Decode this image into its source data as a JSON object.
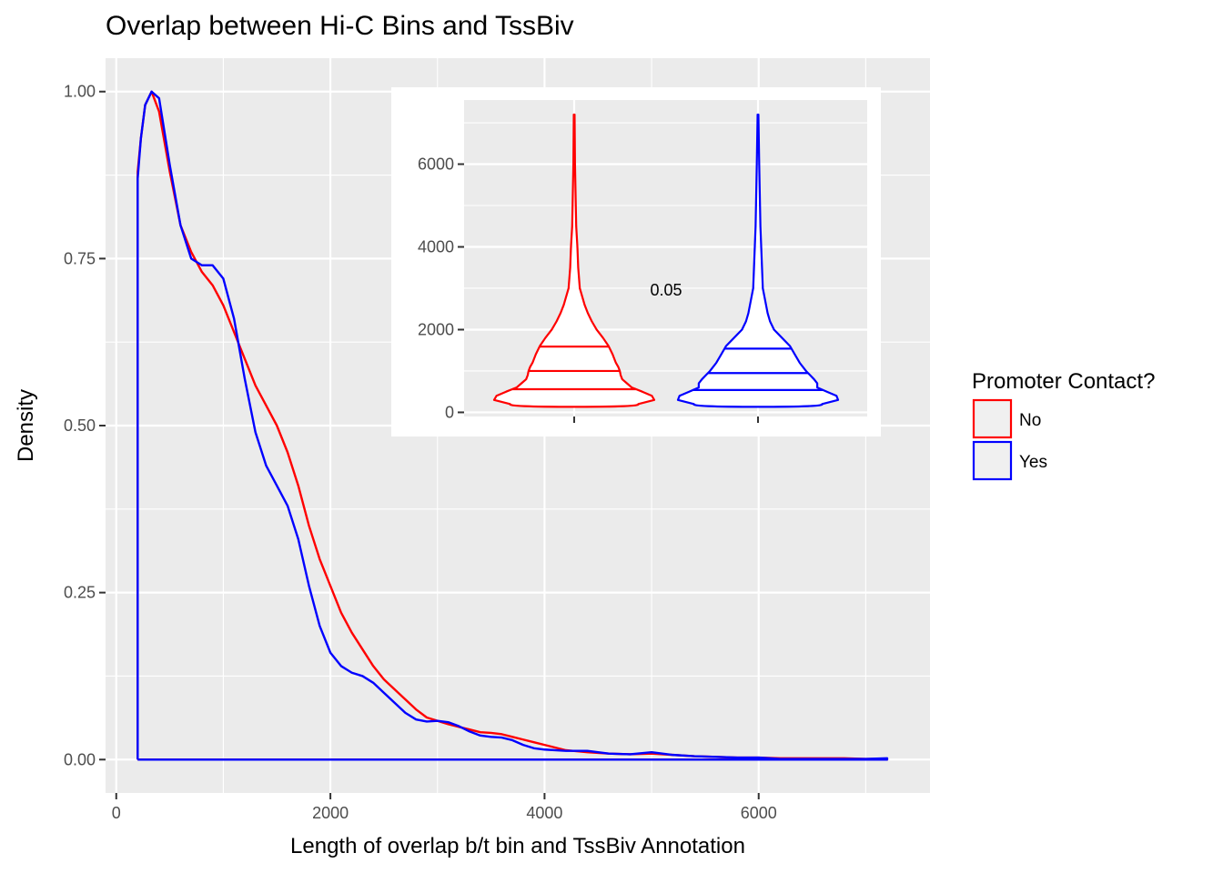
{
  "chart_data": {
    "type": "line",
    "title": "Overlap between Hi-C Bins and TssBiv",
    "xlabel": "Length of overlap b/t bin and TssBiv Annotation",
    "ylabel": "Density",
    "xlim": [
      -100,
      7600
    ],
    "ylim": [
      -0.05,
      1.05
    ],
    "x_ticks": [
      0,
      2000,
      4000,
      6000
    ],
    "x_tick_labels": [
      "0",
      "2000",
      "4000",
      "6000"
    ],
    "y_ticks": [
      0,
      0.25,
      0.5,
      0.75,
      1.0
    ],
    "y_tick_labels": [
      "0.00",
      "0.25",
      "0.50",
      "0.75",
      "1.00"
    ],
    "grid": true,
    "legend": {
      "title": "Promoter Contact?",
      "position": "right",
      "entries": [
        {
          "label": "No",
          "color": "#ff0000"
        },
        {
          "label": "Yes",
          "color": "#0000ff"
        }
      ]
    },
    "series": [
      {
        "name": "No",
        "color": "#ff0000",
        "x": [
          200,
          230,
          270,
          330,
          400,
          500,
          600,
          700,
          800,
          900,
          1000,
          1100,
          1200,
          1300,
          1400,
          1500,
          1600,
          1700,
          1800,
          1900,
          2000,
          2100,
          2200,
          2300,
          2400,
          2500,
          2600,
          2700,
          2800,
          2900,
          3000,
          3100,
          3200,
          3300,
          3400,
          3500,
          3600,
          3700,
          3800,
          3900,
          4000,
          4200,
          4400,
          4600,
          4800,
          5000,
          5200,
          5400,
          5600,
          5800,
          6000,
          6200,
          6400,
          6600,
          6800,
          7000,
          7200
        ],
        "y": [
          0.88,
          0.93,
          0.98,
          1.0,
          0.97,
          0.88,
          0.8,
          0.76,
          0.73,
          0.71,
          0.68,
          0.64,
          0.6,
          0.56,
          0.53,
          0.5,
          0.46,
          0.41,
          0.35,
          0.3,
          0.26,
          0.22,
          0.19,
          0.165,
          0.14,
          0.12,
          0.105,
          0.09,
          0.075,
          0.063,
          0.058,
          0.053,
          0.049,
          0.045,
          0.041,
          0.04,
          0.038,
          0.034,
          0.03,
          0.026,
          0.022,
          0.014,
          0.011,
          0.009,
          0.008,
          0.009,
          0.007,
          0.005,
          0.004,
          0.003,
          0.003,
          0.002,
          0.002,
          0.002,
          0.002,
          0.001,
          0.001
        ]
      },
      {
        "name": "Yes",
        "color": "#0000ff",
        "x": [
          200,
          230,
          270,
          330,
          400,
          500,
          600,
          700,
          800,
          900,
          1000,
          1100,
          1200,
          1300,
          1400,
          1500,
          1600,
          1700,
          1800,
          1900,
          2000,
          2100,
          2200,
          2300,
          2400,
          2500,
          2600,
          2700,
          2800,
          2900,
          3000,
          3100,
          3200,
          3300,
          3400,
          3500,
          3600,
          3700,
          3800,
          3900,
          4000,
          4200,
          4400,
          4600,
          4800,
          5000,
          5200,
          5400,
          5600,
          5800,
          6000,
          6200,
          6400,
          6600,
          6800,
          7000,
          7200
        ],
        "y": [
          0.87,
          0.93,
          0.98,
          1.0,
          0.99,
          0.89,
          0.8,
          0.75,
          0.74,
          0.74,
          0.72,
          0.66,
          0.57,
          0.49,
          0.44,
          0.41,
          0.38,
          0.33,
          0.26,
          0.2,
          0.16,
          0.14,
          0.13,
          0.125,
          0.115,
          0.1,
          0.085,
          0.07,
          0.06,
          0.057,
          0.058,
          0.056,
          0.05,
          0.042,
          0.036,
          0.034,
          0.033,
          0.029,
          0.022,
          0.017,
          0.015,
          0.013,
          0.013,
          0.009,
          0.008,
          0.011,
          0.007,
          0.005,
          0.004,
          0.003,
          0.003,
          0.001,
          0.001,
          0.001,
          0.001,
          0.001,
          0.002
        ]
      }
    ],
    "inset": {
      "type": "violin",
      "ylim": [
        -100,
        7550
      ],
      "y_ticks": [
        0,
        2000,
        4000,
        6000
      ],
      "y_tick_labels": [
        "0",
        "2000",
        "4000",
        "6000"
      ],
      "annotation": "0.05",
      "quantiles": [
        0.25,
        0.5,
        0.75
      ],
      "violins": [
        {
          "name": "No",
          "color": "#ff0000",
          "min": 200,
          "max": 7200,
          "q1": 560,
          "median": 1000,
          "q3": 1590,
          "profile_y": [
            200,
            300,
            400,
            500,
            600,
            700,
            800,
            900,
            1000,
            1100,
            1200,
            1400,
            1600,
            1800,
            2000,
            2200,
            2400,
            2600,
            2800,
            3000,
            3500,
            4000,
            4500,
            5000,
            6000,
            7200
          ],
          "profile_w": [
            0.8,
            1.0,
            0.97,
            0.85,
            0.72,
            0.66,
            0.6,
            0.58,
            0.57,
            0.55,
            0.52,
            0.48,
            0.43,
            0.36,
            0.28,
            0.22,
            0.17,
            0.13,
            0.1,
            0.07,
            0.05,
            0.04,
            0.025,
            0.02,
            0.01,
            0.005
          ]
        },
        {
          "name": "Yes",
          "color": "#0000ff",
          "min": 200,
          "max": 7200,
          "q1": 540,
          "median": 950,
          "q3": 1540,
          "profile_y": [
            200,
            300,
            400,
            500,
            600,
            700,
            800,
            900,
            1000,
            1100,
            1200,
            1400,
            1600,
            1800,
            2000,
            2200,
            2400,
            2600,
            2800,
            3000,
            3500,
            4000,
            4500,
            5000,
            6000,
            7200
          ],
          "profile_w": [
            0.8,
            1.0,
            0.98,
            0.86,
            0.74,
            0.74,
            0.7,
            0.65,
            0.6,
            0.56,
            0.52,
            0.46,
            0.4,
            0.3,
            0.2,
            0.15,
            0.12,
            0.1,
            0.08,
            0.06,
            0.05,
            0.04,
            0.03,
            0.025,
            0.015,
            0.005
          ]
        }
      ]
    }
  }
}
